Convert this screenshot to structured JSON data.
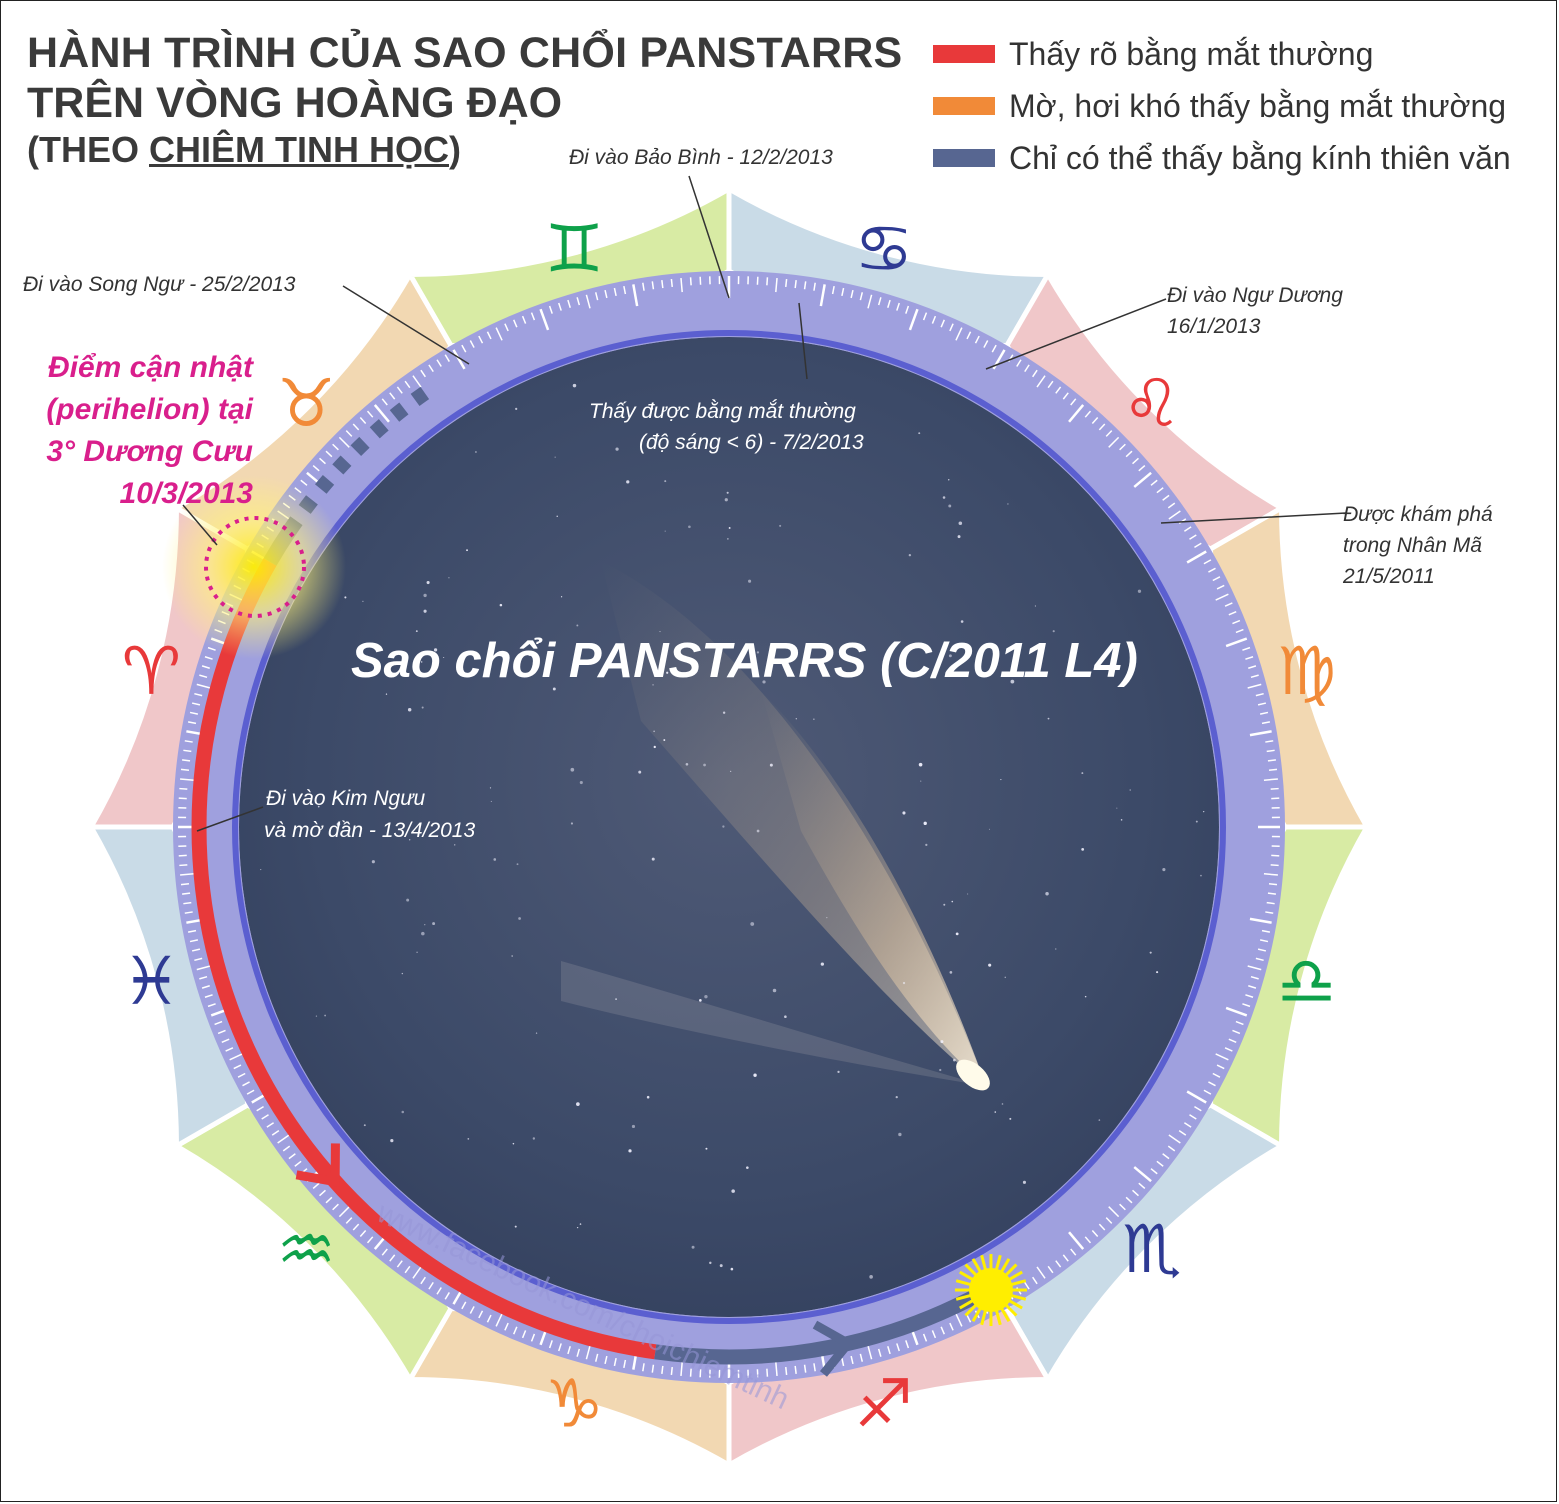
{
  "title": {
    "line1": "HÀNH TRÌNH CỦA SAO CHỔI PANSTARRS",
    "line2": "TRÊN VÒNG HOÀNG ĐẠO",
    "line3_open": "(THEO ",
    "line3_link": "CHIÊM TINH HỌC",
    "line3_close": ")"
  },
  "legend": [
    {
      "label": "Thấy rõ bằng mắt thường",
      "color": "#e8393a"
    },
    {
      "label": "Mờ, hơi khó thấy bằng mắt thường",
      "color": "#f18a38"
    },
    {
      "label": "Chỉ có thể thấy bằng kính thiên văn",
      "color": "#576691"
    }
  ],
  "annotations": {
    "aquarius_entry": "Đi vào Bảo Bình - 12/2/2013",
    "pisces_entry": "Đi vào Song Ngư - 25/2/2013",
    "capricorn_entry_1": "Đi vào Ngư Dương",
    "capricorn_entry_2": "16/1/2013",
    "naked_eye_1": "Thấy được bằng mắt thường",
    "naked_eye_2": "(độ sáng < 6) - 7/2/2013",
    "discovered_1": "Được khám phá",
    "discovered_2": "trong Nhân Mã",
    "discovered_3": "21/5/2011",
    "taurus_entry_1": "Đi vào Kim Ngưu",
    "taurus_entry_2": "và mờ dần - 13/4/2013"
  },
  "perihelion": {
    "line1": "Điểm cận nhật",
    "line2": "(perihelion) tại",
    "line3": "3° Dương Cưu",
    "line4": "10/3/2013"
  },
  "comet_title": "Sao chổi PANSTARRS (C/2011 L4)",
  "watermark": "www.facebook.com/choichiemtinh",
  "zodiac_colors": {
    "fire": "#f0c7c9",
    "earth": "#f2d8b2",
    "air": "#d8eba4",
    "water": "#c9dbe7",
    "fire_glyph": "#e8393a",
    "earth_glyph": "#f18a38",
    "air_glyph": "#0ea14a",
    "water_glyph": "#2e3a93"
  },
  "zodiac": [
    {
      "sign": "Aries",
      "glyph": "♈",
      "element": "fire"
    },
    {
      "sign": "Taurus",
      "glyph": "♉",
      "element": "earth"
    },
    {
      "sign": "Gemini",
      "glyph": "♊",
      "element": "air"
    },
    {
      "sign": "Cancer",
      "glyph": "♋",
      "element": "water"
    },
    {
      "sign": "Leo",
      "glyph": "♌",
      "element": "fire"
    },
    {
      "sign": "Virgo",
      "glyph": "♍",
      "element": "earth"
    },
    {
      "sign": "Libra",
      "glyph": "♎",
      "element": "air"
    },
    {
      "sign": "Scorpio",
      "glyph": "♏",
      "element": "water"
    },
    {
      "sign": "Sagittarius",
      "glyph": "♐",
      "element": "fire"
    },
    {
      "sign": "Capricorn",
      "glyph": "♑",
      "element": "earth"
    },
    {
      "sign": "Aquarius",
      "glyph": "♒",
      "element": "air"
    },
    {
      "sign": "Pisces",
      "glyph": "♓",
      "element": "water"
    }
  ],
  "path_colors": {
    "visible": "#e8393a",
    "telescope": "#576691",
    "scale_band": "#9fa0de",
    "scale_edge": "#5b5fd0",
    "sky": "#3d4c6c",
    "sun": "#ffee00",
    "perihelion_marker": "#d91f8c"
  }
}
